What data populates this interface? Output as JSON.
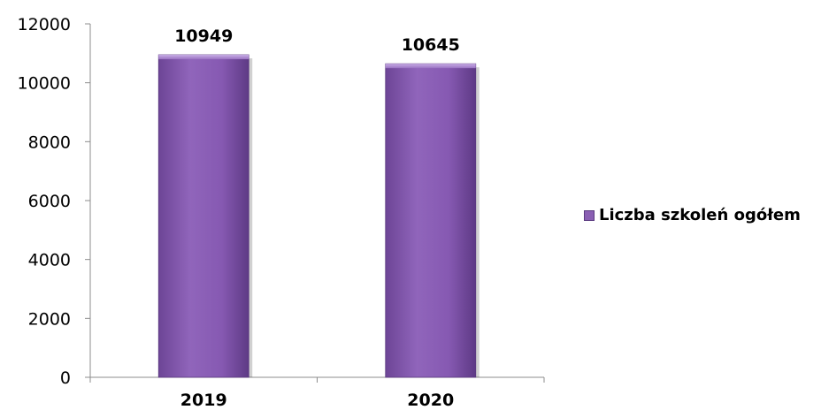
{
  "chart_data": {
    "type": "bar",
    "categories": [
      "2019",
      "2020"
    ],
    "series": [
      {
        "name": "Liczba szkoleń ogółem",
        "values": [
          10949,
          10645
        ],
        "color": "#8a5fb3"
      }
    ],
    "ylim": [
      0,
      12000
    ],
    "yticks": [
      "0",
      "2000",
      "4000",
      "6000",
      "8000",
      "10000",
      "12000"
    ],
    "data_labels": [
      "10949",
      "10645"
    ],
    "grid": false,
    "legend_position": "right"
  }
}
